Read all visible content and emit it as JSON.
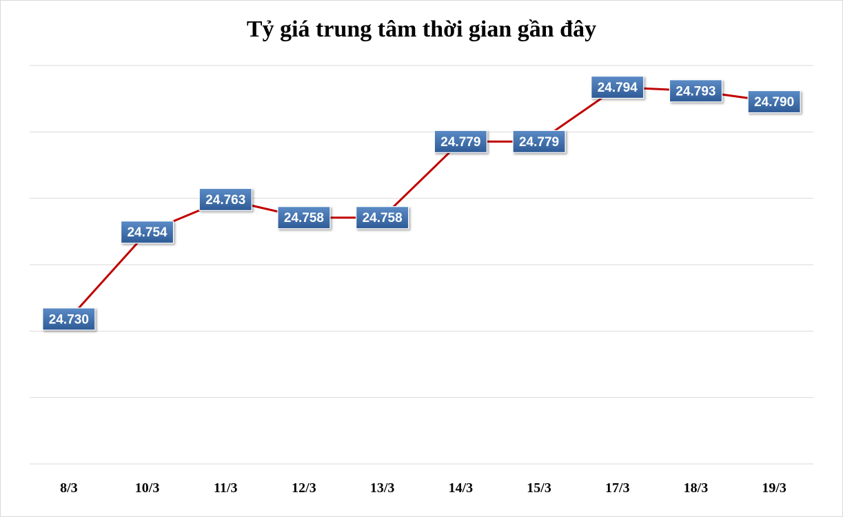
{
  "chart_data": {
    "type": "line",
    "title": "Tỷ giá trung tâm thời gian gần đây",
    "categories": [
      "8/3",
      "10/3",
      "11/3",
      "12/3",
      "13/3",
      "14/3",
      "15/3",
      "17/3",
      "18/3",
      "19/3"
    ],
    "values": [
      24730,
      24754,
      24763,
      24758,
      24758,
      24779,
      24779,
      24794,
      24793,
      24790
    ],
    "data_labels": [
      "24.730",
      "24.754",
      "24.763",
      "24.758",
      "24.758",
      "24.779",
      "24.779",
      "24.794",
      "24.793",
      "24.790"
    ],
    "xlabel": "",
    "ylabel": "",
    "ylim": [
      24690,
      24800
    ],
    "y_axis_labels_visible": false,
    "grid": true,
    "legend": "none",
    "colors": {
      "line": "#c00000",
      "label_fill_top": "#5b8bc6",
      "label_fill_bottom": "#2e5b96",
      "gridline": "#d9d9d9"
    }
  }
}
